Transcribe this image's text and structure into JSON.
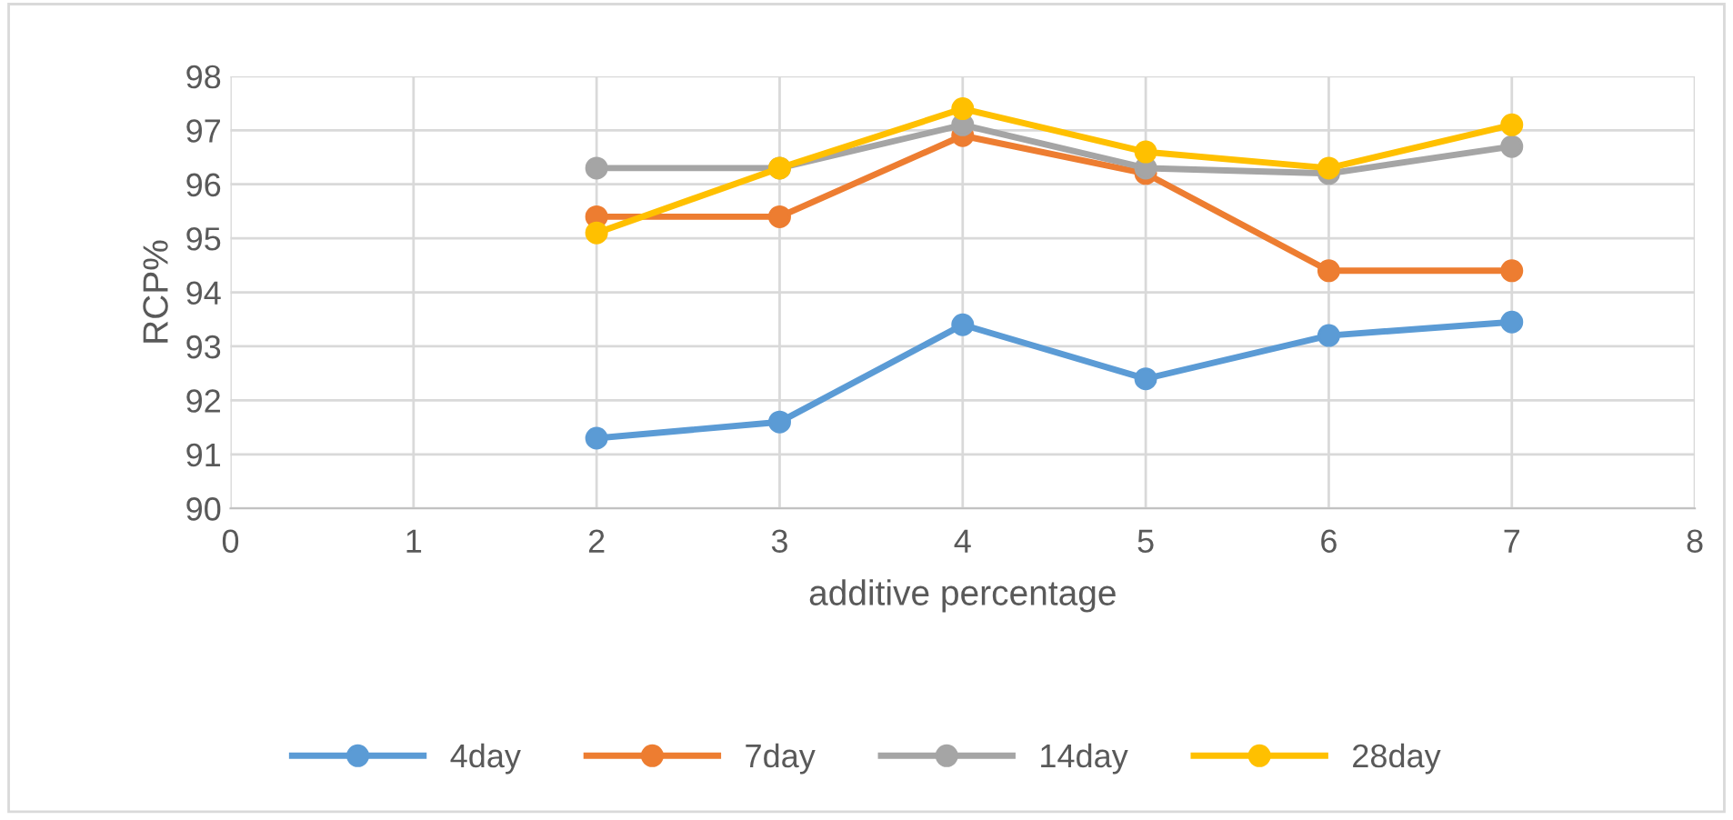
{
  "chart_data": {
    "type": "line",
    "xlabel": "additive percentage",
    "ylabel": "RCP%",
    "x": [
      2,
      3,
      4,
      5,
      6,
      7
    ],
    "series": [
      {
        "name": "4day",
        "color": "#5b9bd5",
        "values": [
          91.3,
          91.6,
          93.4,
          92.4,
          93.2,
          93.45
        ]
      },
      {
        "name": "7day",
        "color": "#ed7d31",
        "values": [
          95.4,
          95.4,
          96.9,
          96.2,
          94.4,
          94.4
        ]
      },
      {
        "name": "14day",
        "color": "#a5a5a5",
        "values": [
          96.3,
          96.3,
          97.1,
          96.3,
          96.2,
          96.7
        ]
      },
      {
        "name": "28day",
        "color": "#ffc000",
        "values": [
          95.1,
          96.3,
          97.4,
          96.6,
          96.3,
          97.1
        ]
      }
    ],
    "xlim": [
      0,
      8
    ],
    "xticks": [
      0,
      1,
      2,
      3,
      4,
      5,
      6,
      7,
      8
    ],
    "ylim": [
      90,
      98
    ],
    "yticks": [
      90,
      91,
      92,
      93,
      94,
      95,
      96,
      97,
      98
    ],
    "grid": true,
    "legend": "bottom",
    "marker": "circle",
    "line_style": "solid"
  }
}
